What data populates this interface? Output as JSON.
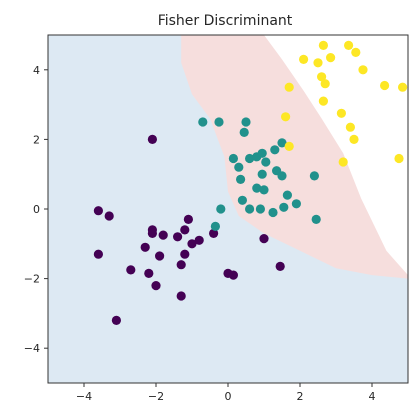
{
  "chart_data": {
    "type": "scatter",
    "title": "Fisher Discriminant",
    "xlabel": "",
    "ylabel": "",
    "xlim": [
      -5,
      5
    ],
    "ylim": [
      -5,
      5
    ],
    "xticks": [
      -4,
      -2,
      0,
      2,
      4
    ],
    "yticks": [
      -4,
      -2,
      0,
      2,
      4
    ],
    "xtick_labels": [
      "−4",
      "−2",
      "0",
      "2",
      "4"
    ],
    "ytick_labels": [
      "−4",
      "−2",
      "0",
      "2",
      "4"
    ],
    "grid": false,
    "regions": [
      {
        "class": 0,
        "color": "#dde9f3"
      },
      {
        "class": 1,
        "color": "#f6dedd"
      },
      {
        "class": 2,
        "color": "#ffffff"
      }
    ],
    "decision_boundary_01": [
      [
        -1.3,
        5
      ],
      [
        -1.3,
        4.2
      ],
      [
        -1.0,
        3.3
      ],
      [
        -0.5,
        2.6
      ],
      [
        -0.1,
        1.5
      ],
      [
        0.0,
        0.5
      ],
      [
        -0.5,
        0.1
      ],
      [
        -1.0,
        -0.1
      ],
      [
        -3.6,
        -0.7
      ],
      [
        -5,
        -1.0
      ]
    ],
    "decision_boundary_12": [
      [
        1.0,
        5
      ],
      [
        1.5,
        4.3
      ],
      [
        2.1,
        3.4
      ],
      [
        2.6,
        2.6
      ],
      [
        3.2,
        1.6
      ],
      [
        3.7,
        0.3
      ],
      [
        4.4,
        -1.2
      ],
      [
        5,
        -1.9
      ]
    ],
    "lower_boundary_01_12": [
      [
        0.0,
        0.5
      ],
      [
        0.3,
        -0.2
      ],
      [
        1.0,
        -0.7
      ],
      [
        2.0,
        -1.2
      ],
      [
        3.0,
        -1.7
      ],
      [
        4.0,
        -1.9
      ],
      [
        5,
        -2.0
      ]
    ],
    "series": [
      {
        "class": 0,
        "color": "#440154",
        "points": [
          [
            -3.6,
            -0.05
          ],
          [
            -3.3,
            -0.2
          ],
          [
            -3.6,
            -1.3
          ],
          [
            -2.7,
            -1.75
          ],
          [
            -2.2,
            -1.85
          ],
          [
            -2.0,
            -2.2
          ],
          [
            -3.1,
            -3.2
          ],
          [
            -2.1,
            -0.6
          ],
          [
            -2.1,
            -0.7
          ],
          [
            -1.8,
            -0.75
          ],
          [
            -1.4,
            -0.8
          ],
          [
            -1.2,
            -0.6
          ],
          [
            -1.1,
            -0.3
          ],
          [
            -2.3,
            -1.1
          ],
          [
            -1.9,
            -1.35
          ],
          [
            -1.2,
            -1.3
          ],
          [
            -1.3,
            -1.6
          ],
          [
            -1.3,
            -2.5
          ],
          [
            -1.0,
            -1.0
          ],
          [
            -0.4,
            -0.7
          ],
          [
            -0.8,
            -0.9
          ],
          [
            0.0,
            -1.85
          ],
          [
            0.15,
            -1.9
          ],
          [
            1.0,
            -0.85
          ],
          [
            1.45,
            -1.65
          ],
          [
            -2.1,
            2.0
          ]
        ]
      },
      {
        "class": 1,
        "color": "#21918c",
        "points": [
          [
            -0.7,
            2.5
          ],
          [
            -0.25,
            2.5
          ],
          [
            0.5,
            2.5
          ],
          [
            0.45,
            2.2
          ],
          [
            0.15,
            1.45
          ],
          [
            0.3,
            1.2
          ],
          [
            0.35,
            0.85
          ],
          [
            0.6,
            1.45
          ],
          [
            0.8,
            1.5
          ],
          [
            0.95,
            1.6
          ],
          [
            1.3,
            1.7
          ],
          [
            1.5,
            1.9
          ],
          [
            1.05,
            1.35
          ],
          [
            1.35,
            1.1
          ],
          [
            0.95,
            1.0
          ],
          [
            1.5,
            0.95
          ],
          [
            0.8,
            0.6
          ],
          [
            1.0,
            0.55
          ],
          [
            1.65,
            0.4
          ],
          [
            2.4,
            0.95
          ],
          [
            0.4,
            0.25
          ],
          [
            0.6,
            0.0
          ],
          [
            0.9,
            0.0
          ],
          [
            1.25,
            -0.1
          ],
          [
            1.55,
            0.05
          ],
          [
            1.9,
            0.15
          ],
          [
            2.45,
            -0.3
          ],
          [
            -0.2,
            0.0
          ],
          [
            -0.35,
            -0.5
          ]
        ]
      },
      {
        "class": 2,
        "color": "#fde725",
        "points": [
          [
            2.1,
            4.3
          ],
          [
            2.5,
            4.2
          ],
          [
            2.65,
            4.7
          ],
          [
            2.85,
            4.35
          ],
          [
            2.6,
            3.8
          ],
          [
            2.7,
            3.6
          ],
          [
            3.35,
            4.7
          ],
          [
            3.75,
            4.0
          ],
          [
            3.55,
            4.5
          ],
          [
            2.65,
            3.1
          ],
          [
            3.15,
            2.75
          ],
          [
            3.4,
            2.35
          ],
          [
            3.5,
            2.0
          ],
          [
            4.35,
            3.55
          ],
          [
            4.85,
            3.5
          ],
          [
            4.75,
            1.45
          ],
          [
            3.2,
            1.35
          ],
          [
            1.7,
            1.8
          ],
          [
            1.6,
            2.65
          ],
          [
            1.7,
            3.5
          ]
        ]
      }
    ]
  }
}
